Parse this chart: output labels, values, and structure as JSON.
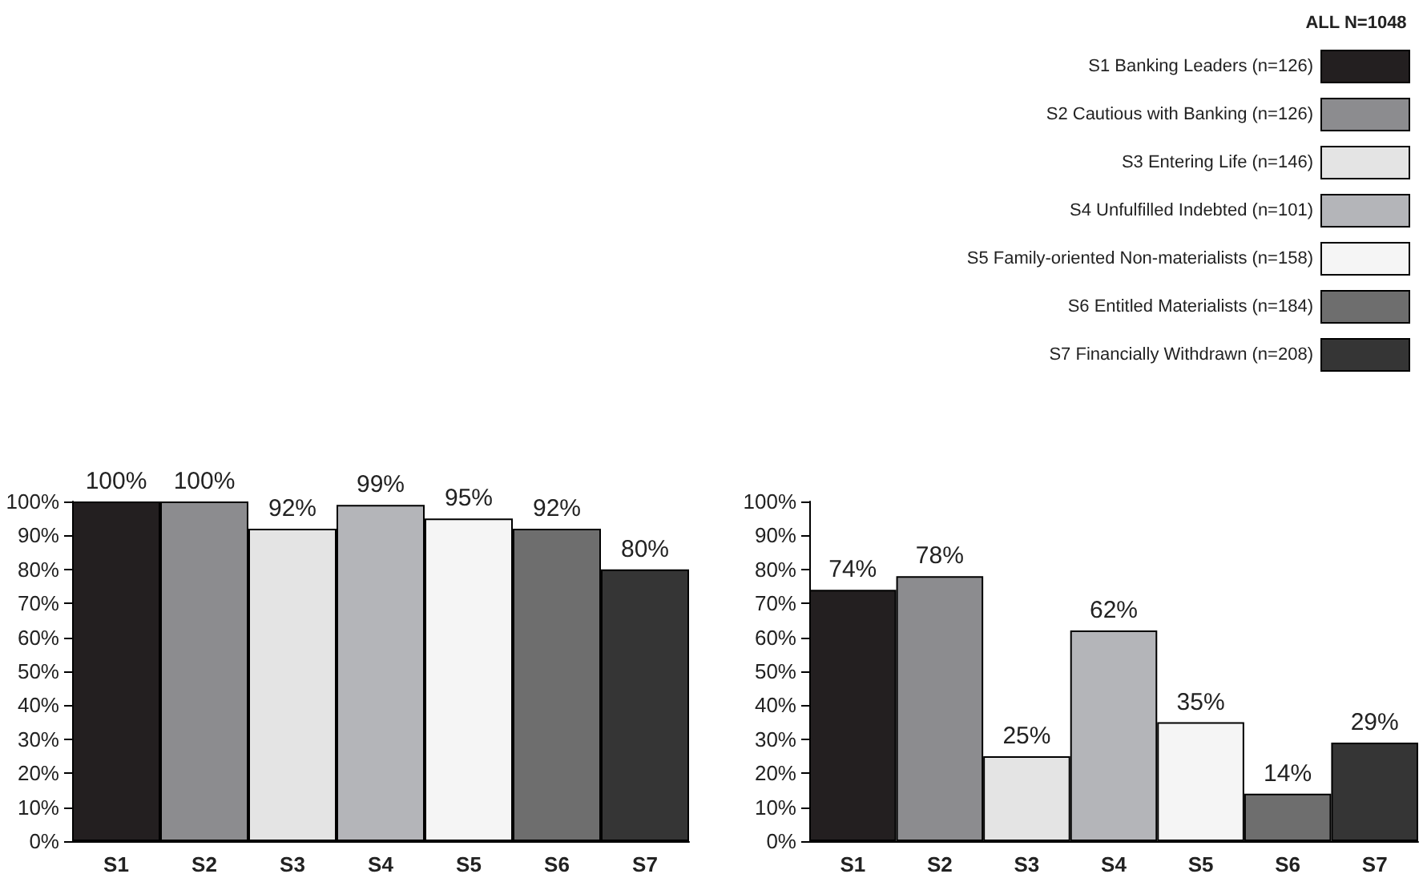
{
  "chart_data": [
    {
      "type": "bar",
      "legend_title": "ALL N=1048",
      "legend": "top right",
      "stacked": true,
      "grid": false,
      "categories": [
        "S1",
        "S2",
        "S3",
        "S4",
        "S5",
        "S6",
        "S7"
      ],
      "ylim": [
        0,
        100
      ],
      "yticks": [
        {
          "value": 0,
          "label": "0%"
        },
        {
          "value": 10,
          "label": "10%"
        },
        {
          "value": 20,
          "label": "20%"
        },
        {
          "value": 30,
          "label": "30%"
        },
        {
          "value": 40,
          "label": "40%"
        },
        {
          "value": 50,
          "label": "50%"
        },
        {
          "value": 60,
          "label": "60%"
        },
        {
          "value": 70,
          "label": "70%"
        },
        {
          "value": 80,
          "label": "80%"
        },
        {
          "value": 90,
          "label": "90%"
        },
        {
          "value": 100,
          "label": "100%"
        }
      ],
      "series": [
        {
          "name": "S1 Banking Leaders (n=126)",
          "color": "#231f20",
          "values": [
            100,
            null,
            null,
            null,
            null,
            null,
            null
          ],
          "value_labels": [
            "100%",
            null,
            null,
            null,
            null,
            null,
            null
          ]
        },
        {
          "name": "S2 Cautious with Banking (n=126)",
          "color": "#8c8c8f",
          "values": [
            null,
            100,
            null,
            null,
            null,
            null,
            null
          ],
          "value_labels": [
            null,
            "100%",
            null,
            null,
            null,
            null,
            null
          ]
        },
        {
          "name": "S3 Entering Life (n=146)",
          "color": "#e4e4e4",
          "values": [
            null,
            null,
            92,
            null,
            null,
            null,
            null
          ],
          "value_labels": [
            null,
            null,
            "92%",
            null,
            null,
            null,
            null
          ]
        },
        {
          "name": "S4 Unfulfilled Indebted (n=101)",
          "color": "#b4b5b9",
          "values": [
            null,
            null,
            null,
            99,
            null,
            null,
            null
          ],
          "value_labels": [
            null,
            null,
            null,
            "99%",
            null,
            null,
            null
          ]
        },
        {
          "name": "S5 Family-oriented Non-materialists (n=158)",
          "color": "#f5f5f5",
          "values": [
            null,
            null,
            null,
            null,
            95,
            null,
            null
          ],
          "value_labels": [
            null,
            null,
            null,
            null,
            "95%",
            null,
            null
          ]
        },
        {
          "name": "S6 Entitled Materialists (n=184)",
          "color": "#6e6e6e",
          "values": [
            null,
            null,
            null,
            null,
            null,
            92,
            null
          ],
          "value_labels": [
            null,
            null,
            null,
            null,
            null,
            "92%",
            null
          ]
        },
        {
          "name": "S7 Financially Withdrawn (n=208)",
          "color": "#353535",
          "values": [
            null,
            null,
            null,
            null,
            null,
            null,
            80
          ],
          "value_labels": [
            null,
            null,
            null,
            null,
            null,
            null,
            "80%"
          ]
        }
      ]
    },
    {
      "type": "bar",
      "stacked": true,
      "grid": false,
      "categories": [
        "S1",
        "S2",
        "S3",
        "S4",
        "S5",
        "S6",
        "S7"
      ],
      "ylim": [
        0,
        100
      ],
      "yticks": [
        {
          "value": 0,
          "label": "0%"
        },
        {
          "value": 10,
          "label": "10%"
        },
        {
          "value": 20,
          "label": "20%"
        },
        {
          "value": 30,
          "label": "30%"
        },
        {
          "value": 40,
          "label": "40%"
        },
        {
          "value": 50,
          "label": "50%"
        },
        {
          "value": 60,
          "label": "60%"
        },
        {
          "value": 70,
          "label": "70%"
        },
        {
          "value": 80,
          "label": "80%"
        },
        {
          "value": 90,
          "label": "90%"
        },
        {
          "value": 100,
          "label": "100%"
        }
      ],
      "series": [
        {
          "color": "#231f20",
          "values": [
            74,
            null,
            null,
            null,
            null,
            null,
            null
          ],
          "value_labels": [
            "74%",
            null,
            null,
            null,
            null,
            null,
            null
          ]
        },
        {
          "color": "#8c8c8f",
          "values": [
            null,
            78,
            null,
            null,
            null,
            null,
            null
          ],
          "value_labels": [
            null,
            "78%",
            null,
            null,
            null,
            null,
            null
          ]
        },
        {
          "color": "#e4e4e4",
          "values": [
            null,
            null,
            25,
            null,
            null,
            null,
            null
          ],
          "value_labels": [
            null,
            null,
            "25%",
            null,
            null,
            null,
            null
          ]
        },
        {
          "color": "#b4b5b9",
          "values": [
            null,
            null,
            null,
            62,
            null,
            null,
            null
          ],
          "value_labels": [
            null,
            null,
            null,
            "62%",
            null,
            null,
            null
          ]
        },
        {
          "color": "#f5f5f5",
          "values": [
            null,
            null,
            null,
            null,
            35,
            null,
            null
          ],
          "value_labels": [
            null,
            null,
            null,
            null,
            "35%",
            null,
            null
          ]
        },
        {
          "color": "#6e6e6e",
          "values": [
            null,
            null,
            null,
            null,
            null,
            14,
            null
          ],
          "value_labels": [
            null,
            null,
            null,
            null,
            null,
            "14%",
            null
          ]
        },
        {
          "color": "#353535",
          "values": [
            null,
            null,
            null,
            null,
            null,
            null,
            29
          ],
          "value_labels": [
            null,
            null,
            null,
            null,
            null,
            null,
            "29%"
          ]
        }
      ]
    }
  ]
}
